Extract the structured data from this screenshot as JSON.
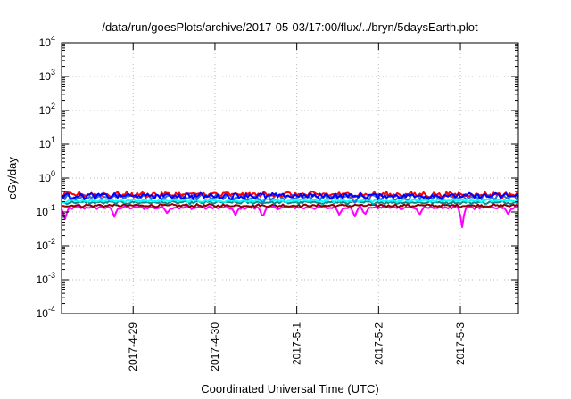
{
  "chart_data": {
    "type": "line",
    "title": "/data/run/goesPlots/archive/2017-05-03/17:00/flux/../bryn/5daysEarth.plot",
    "xlabel": "Coordinated Universal Time (UTC)",
    "ylabel": "cGy/day",
    "yscale": "log",
    "ylim": [
      0.0001,
      10000
    ],
    "yticks": [
      {
        "value": 0.0001,
        "base": "10",
        "exp": "-4"
      },
      {
        "value": 0.001,
        "base": "10",
        "exp": "-3"
      },
      {
        "value": 0.01,
        "base": "10",
        "exp": "-2"
      },
      {
        "value": 0.1,
        "base": "10",
        "exp": "-1"
      },
      {
        "value": 1,
        "base": "10",
        "exp": "0"
      },
      {
        "value": 10,
        "base": "10",
        "exp": "1"
      },
      {
        "value": 100,
        "base": "10",
        "exp": "2"
      },
      {
        "value": 1000,
        "base": "10",
        "exp": "3"
      },
      {
        "value": 10000,
        "base": "10",
        "exp": "4"
      }
    ],
    "xlim": [
      "2017-04-28 03:00",
      "2017-05-03 17:00"
    ],
    "xticks": [
      {
        "value": "2017-04-29 00:00",
        "label": "2017-4-29"
      },
      {
        "value": "2017-04-30 00:00",
        "label": "2017-4-30"
      },
      {
        "value": "2017-05-01 00:00",
        "label": "2017-5-1"
      },
      {
        "value": "2017-05-02 00:00",
        "label": "2017-5-2"
      },
      {
        "value": "2017-05-03 00:00",
        "label": "2017-5-3"
      }
    ],
    "grid": true,
    "series": [
      {
        "color": "#ff00ff",
        "base": 0.135,
        "noise": 0.012,
        "dips": [
          {
            "t": "2017-04-28 04:00",
            "v": 0.06
          },
          {
            "t": "2017-04-28 18:30",
            "v": 0.07
          },
          {
            "t": "2017-04-29 10:00",
            "v": 0.09
          },
          {
            "t": "2017-04-30 06:00",
            "v": 0.08
          },
          {
            "t": "2017-04-30 14:00",
            "v": 0.065
          },
          {
            "t": "2017-05-01 12:30",
            "v": 0.08
          },
          {
            "t": "2017-05-01 17:00",
            "v": 0.07
          },
          {
            "t": "2017-05-01 20:00",
            "v": 0.08
          },
          {
            "t": "2017-05-02 12:00",
            "v": 0.08
          },
          {
            "t": "2017-05-03 00:30",
            "v": 0.035
          },
          {
            "t": "2017-05-03 14:00",
            "v": 0.085
          }
        ]
      },
      {
        "color": "#8b0000",
        "base": 0.155,
        "noise": 0.012,
        "dips": []
      },
      {
        "color": "#008b8b",
        "base": 0.19,
        "noise": 0.015,
        "dips": []
      },
      {
        "color": "#00ffff",
        "base": 0.215,
        "noise": 0.018,
        "dips": []
      },
      {
        "color": "#2a6fdb",
        "base": 0.28,
        "noise": 0.04,
        "dips": [
          {
            "t": "2017-04-30 14:00",
            "v": 0.17
          },
          {
            "t": "2017-05-01 17:00",
            "v": 0.18
          }
        ]
      },
      {
        "color": "#ff0000",
        "base": 0.33,
        "noise": 0.05,
        "dips": []
      },
      {
        "color": "#0000ff",
        "base": 0.3,
        "noise": 0.05,
        "dips": []
      }
    ]
  }
}
